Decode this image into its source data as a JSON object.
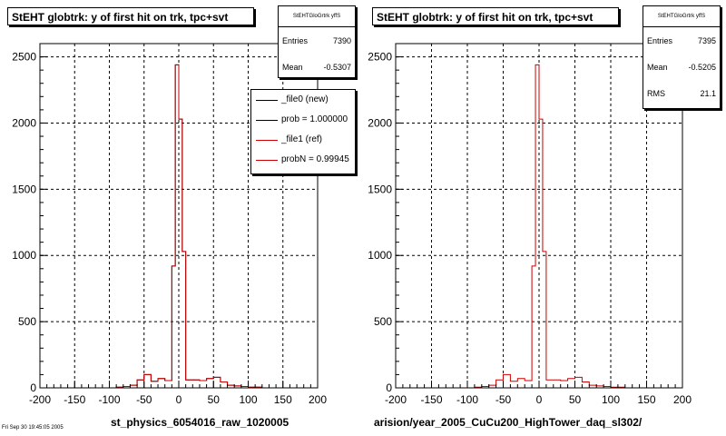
{
  "chart_data": [
    {
      "type": "bar",
      "title": "StEHT globtrk: y of first hit on trk, tpc+svt",
      "xlabel": "st_physics_6054016_raw_1020005",
      "ylabel": "",
      "xlim": [
        -200,
        200
      ],
      "ylim": [
        0,
        2600
      ],
      "grid": true,
      "x_ticks": [
        "-200",
        "-150",
        "-100",
        "-50",
        "0",
        "50",
        "100",
        "150",
        "200"
      ],
      "y_ticks": [
        "0",
        "500",
        "1000",
        "1500",
        "2000",
        "2500"
      ],
      "bin_edges": [
        -200,
        -190,
        -180,
        -170,
        -160,
        -150,
        -140,
        -130,
        -120,
        -110,
        -100,
        -90,
        -80,
        -70,
        -60,
        -50,
        -40,
        -30,
        -20,
        -10,
        -5,
        0,
        5,
        10,
        15,
        20,
        30,
        40,
        50,
        60,
        70,
        80,
        90,
        100,
        110,
        120,
        130,
        140,
        150,
        160,
        170,
        180,
        190,
        200
      ],
      "series": [
        {
          "name": "_file0 (new)",
          "color": "#000000",
          "values": [
            0,
            0,
            0,
            0,
            0,
            0,
            0,
            0,
            0,
            0,
            0,
            5,
            10,
            20,
            60,
            100,
            50,
            70,
            55,
            920,
            2440,
            2030,
            1030,
            60,
            60,
            60,
            55,
            70,
            80,
            45,
            20,
            15,
            10,
            5,
            5,
            0,
            0,
            0,
            0,
            0,
            0,
            0
          ]
        },
        {
          "name": "_file1 (ref)",
          "color": "#cc0000",
          "values": [
            0,
            0,
            0,
            0,
            0,
            0,
            0,
            0,
            0,
            0,
            0,
            5,
            10,
            20,
            60,
            100,
            50,
            70,
            55,
            920,
            2440,
            2030,
            1030,
            60,
            60,
            60,
            55,
            70,
            80,
            45,
            20,
            15,
            10,
            5,
            5,
            0,
            0,
            0,
            0,
            0,
            0,
            0
          ]
        }
      ],
      "legend": {
        "placement": "top-right",
        "entries": [
          {
            "text": "_file0 (new)",
            "color": "#000000"
          },
          {
            "text": "prob = 1.000000",
            "color": "#000000"
          },
          {
            "text": "_file1 (ref)",
            "color": "#cc0000"
          },
          {
            "text": "probN = 0.99945",
            "color": "#cc0000"
          }
        ]
      },
      "stats": {
        "name": "StEHTGloGrtrk yffS",
        "entries_label": "Entries",
        "entries": "7390",
        "mean_label": "Mean",
        "mean": "-0.5307"
      }
    },
    {
      "type": "bar",
      "title": "StEHT globtrk: y of first hit on trk, tpc+svt",
      "xlabel": "arision/year_2005_CuCu200_HighTower_daq_sl302/",
      "ylabel": "",
      "xlim": [
        -200,
        200
      ],
      "ylim": [
        0,
        2600
      ],
      "grid": true,
      "x_ticks": [
        "-200",
        "-150",
        "-100",
        "-50",
        "0",
        "50",
        "100",
        "150",
        "200"
      ],
      "y_ticks": [
        "0",
        "500",
        "1000",
        "1500",
        "2000",
        "2500"
      ],
      "bin_edges": [
        -200,
        -190,
        -180,
        -170,
        -160,
        -150,
        -140,
        -130,
        -120,
        -110,
        -100,
        -90,
        -80,
        -70,
        -60,
        -50,
        -40,
        -30,
        -20,
        -10,
        -5,
        0,
        5,
        10,
        15,
        20,
        30,
        40,
        50,
        60,
        70,
        80,
        90,
        100,
        110,
        120,
        130,
        140,
        150,
        160,
        170,
        180,
        190,
        200
      ],
      "series": [
        {
          "name": "",
          "color": "#cc0000",
          "values": [
            0,
            0,
            0,
            0,
            0,
            0,
            0,
            0,
            0,
            0,
            0,
            5,
            10,
            20,
            60,
            100,
            50,
            70,
            55,
            920,
            2440,
            2030,
            1030,
            60,
            60,
            60,
            55,
            70,
            80,
            45,
            20,
            15,
            10,
            5,
            5,
            0,
            0,
            0,
            0,
            0,
            0,
            0
          ]
        }
      ],
      "stats": {
        "name": "StEHTGloGrtrk yffS",
        "entries_label": "Entries",
        "entries": "7395",
        "mean_label": "Mean",
        "mean": "-0.5205",
        "rms_label": "RMS",
        "rms": "21.1"
      }
    }
  ],
  "footer_note": "Fri Sep 30 19:45:05 2005"
}
